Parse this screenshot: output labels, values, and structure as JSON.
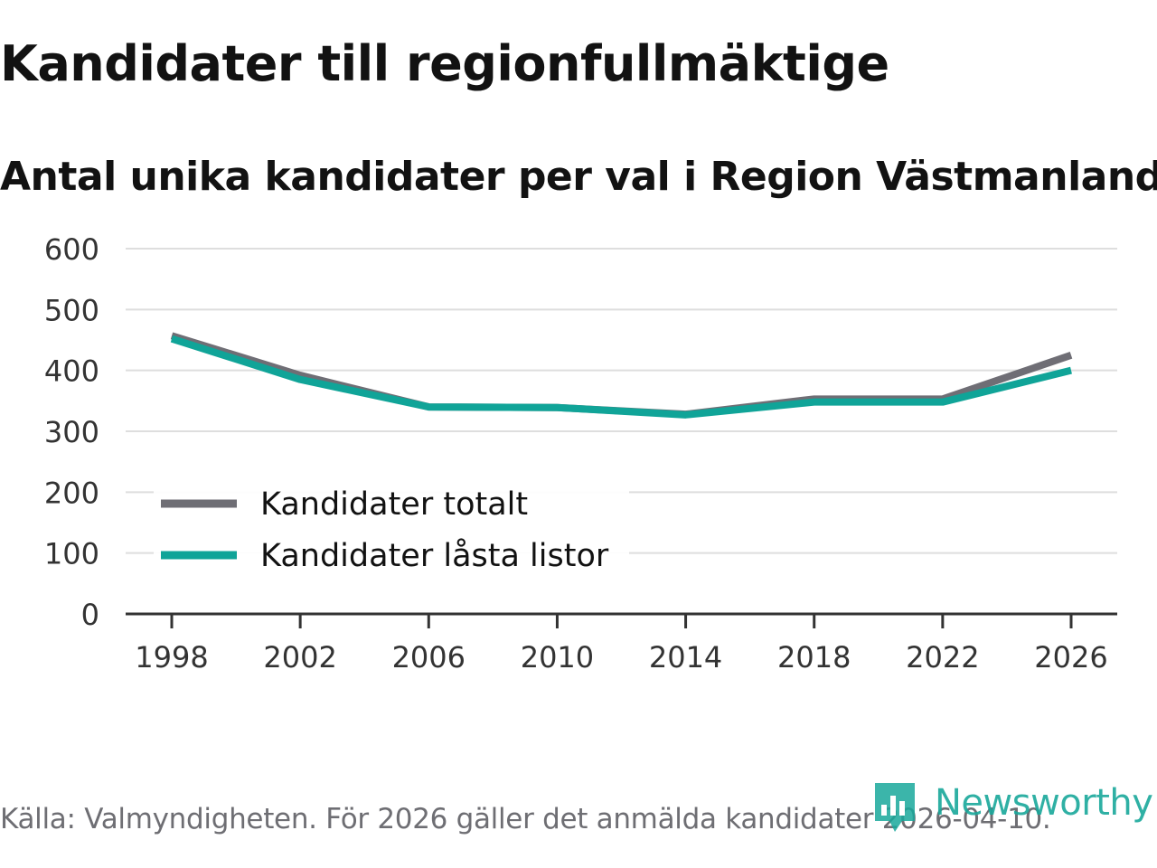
{
  "header": {
    "title": "Kandidater till regionfullmäktige",
    "subtitle": "Antal unika kandidater per val i Region Västmanland"
  },
  "chart_data": {
    "type": "line",
    "title": "Kandidater till regionfullmäktige",
    "subtitle": "Antal unika kandidater per val i Region Västmanland",
    "xlabel": "",
    "ylabel": "",
    "categories": [
      "1998",
      "2002",
      "2006",
      "2010",
      "2014",
      "2018",
      "2022",
      "2026"
    ],
    "y_ticks": [
      "0",
      "100",
      "200",
      "300",
      "400",
      "500",
      "600"
    ],
    "ylim": [
      0,
      600
    ],
    "grid": true,
    "legend_position": "bottom-left",
    "series": [
      {
        "name": "Kandidater totalt",
        "color": "#6f6e75",
        "values": [
          457,
          392,
          340,
          339,
          328,
          353,
          353,
          425
        ]
      },
      {
        "name": "Kandidater låsta listor",
        "color": "#10a498",
        "values": [
          452,
          385,
          340,
          339,
          327,
          348,
          348,
          400
        ]
      }
    ]
  },
  "footer": {
    "source": "Källa: Valmyndigheten. För 2026 gäller det anmälda kandidater 2026-04-10.",
    "brand": "Newsworthy",
    "brand_icon": "newsworthy-logo-icon",
    "brand_color": "#19a89b"
  }
}
